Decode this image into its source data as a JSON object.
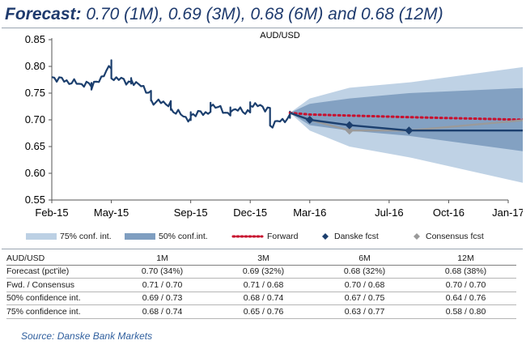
{
  "title": {
    "prefix": "Forecast:",
    "rest": "0.70 (1M), 0.69 (3M), 0.68 (6M) and 0.68 (12M)"
  },
  "colors": {
    "title": "#1f3b6e",
    "band75": "#bcd0e4",
    "band50": "#7f9ec0",
    "history": "#1c3f6e",
    "forward": "#c8102e",
    "danske": "#1c3f6e",
    "consensus": "#9a9a9a",
    "source": "#2f5f9e"
  },
  "chart_data": {
    "type": "line",
    "title": "AUD/USD",
    "ylim": [
      0.55,
      0.85
    ],
    "yticks": [
      "0.85",
      "0.80",
      "0.75",
      "0.70",
      "0.65",
      "0.60",
      "0.55"
    ],
    "x_tick_labels": [
      "Feb-15",
      "May-15",
      "Sep-15",
      "Dec-15",
      "Mar-16",
      "Jul-16",
      "Oct-16",
      "Jan-17"
    ],
    "x_tick_dates": [
      "2015-02",
      "2015-05",
      "2015-09",
      "2015-12",
      "2016-03",
      "2016-07",
      "2016-10",
      "2017-01"
    ],
    "xlim": [
      "2015-02",
      "2017-01"
    ],
    "grid": false,
    "legend_position": "bottom",
    "history": {
      "name": "AUD/USD spot",
      "x": [
        "2015-02",
        "2015-03",
        "2015-04",
        "2015-04",
        "2015-05",
        "2015-05",
        "2015-05",
        "2015-06",
        "2015-06",
        "2015-07",
        "2015-07",
        "2015-08",
        "2015-08",
        "2015-09",
        "2015-09",
        "2015-10",
        "2015-10",
        "2015-11",
        "2015-11",
        "2015-12",
        "2015-12",
        "2016-01",
        "2016-01",
        "2016-02",
        "2016-02"
      ],
      "y": [
        0.78,
        0.77,
        0.765,
        0.76,
        0.8,
        0.81,
        0.78,
        0.77,
        0.775,
        0.75,
        0.735,
        0.73,
        0.72,
        0.7,
        0.71,
        0.715,
        0.73,
        0.71,
        0.72,
        0.715,
        0.73,
        0.72,
        0.69,
        0.705,
        0.713
      ]
    },
    "series": [
      {
        "name": "75% conf. int.",
        "kind": "band",
        "x": [
          "2016-02",
          "2016-03",
          "2016-05",
          "2016-08",
          "2017-02"
        ],
        "lower": [
          0.713,
          0.68,
          0.65,
          0.63,
          0.58
        ],
        "upper": [
          0.713,
          0.74,
          0.76,
          0.77,
          0.8
        ]
      },
      {
        "name": "50% conf.int.",
        "kind": "band",
        "x": [
          "2016-02",
          "2016-03",
          "2016-05",
          "2016-08",
          "2017-02"
        ],
        "lower": [
          0.713,
          0.69,
          0.68,
          0.67,
          0.64
        ],
        "upper": [
          0.713,
          0.73,
          0.74,
          0.75,
          0.76
        ]
      },
      {
        "name": "Forward",
        "kind": "dotted-line",
        "x": [
          "2016-02",
          "2016-03",
          "2016-05",
          "2016-08",
          "2017-02"
        ],
        "values": [
          0.713,
          0.71,
          0.708,
          0.705,
          0.7
        ]
      },
      {
        "name": "Danske fcst",
        "kind": "line-markers",
        "x": [
          "2016-02",
          "2016-03",
          "2016-05",
          "2016-08",
          "2017-02"
        ],
        "values": [
          0.713,
          0.7,
          0.69,
          0.68,
          0.68
        ]
      },
      {
        "name": "Consensus fcst",
        "kind": "line-markers",
        "x": [
          "2016-02",
          "2016-03",
          "2016-05",
          "2016-08",
          "2017-02"
        ],
        "values": [
          0.713,
          0.7,
          0.68,
          0.68,
          0.7
        ]
      }
    ]
  },
  "legend": [
    "75% conf. int.",
    "50% conf.int.",
    "Forward",
    "Danske fcst",
    "Consensus fcst"
  ],
  "table": {
    "header": [
      "AUD/USD",
      "1M",
      "3M",
      "6M",
      "12M"
    ],
    "rows": [
      [
        "Forecast (pct'ile)",
        "0.70 (34%)",
        "0.69 (32%)",
        "0.68 (32%)",
        "0.68 (38%)"
      ],
      [
        "Fwd. / Consensus",
        "0.71 / 0.70",
        "0.71 / 0.68",
        "0.70 / 0.68",
        "0.70 / 0.70"
      ],
      [
        "50% confidence int.",
        "0.69 / 0.73",
        "0.68 / 0.74",
        "0.67 / 0.75",
        "0.64 / 0.76"
      ],
      [
        "75% confidence int.",
        "0.68 / 0.74",
        "0.65 / 0.76",
        "0.63 / 0.77",
        "0.58 / 0.80"
      ]
    ]
  },
  "source": "Source: Danske Bank Markets"
}
